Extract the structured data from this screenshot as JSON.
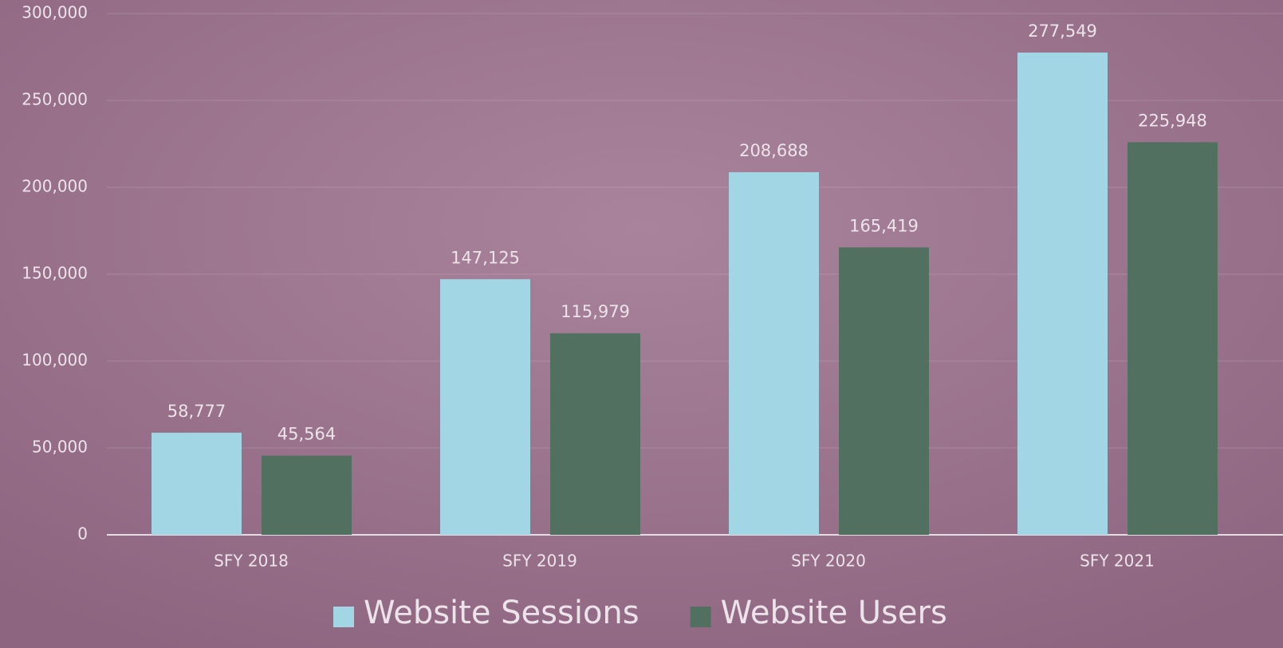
{
  "chart_data": {
    "type": "bar",
    "categories": [
      "SFY 2018",
      "SFY 2019",
      "SFY 2020",
      "SFY 2021"
    ],
    "series": [
      {
        "name": "Website Sessions",
        "color": "#a3d6e4",
        "values": [
          58777,
          147125,
          208688,
          277549
        ],
        "value_labels": [
          "58,777",
          "147,125",
          "208,688",
          "277,549"
        ]
      },
      {
        "name": "Website Users",
        "color": "#52705f",
        "values": [
          45564,
          115979,
          165419,
          225948
        ],
        "value_labels": [
          "45,564",
          "115,979",
          "165,419",
          "225,948"
        ]
      }
    ],
    "ylim": [
      0,
      300000
    ],
    "yticks": [
      0,
      {
        "value": 50000,
        "label": "50,000"
      },
      {
        "value": 100000,
        "label": "100,000"
      },
      {
        "value": 150000,
        "label": "150,000"
      },
      {
        "value": 200000,
        "label": "200,000"
      },
      {
        "value": 250000,
        "label": "250,000"
      },
      {
        "value": 300000,
        "label": "300,000"
      }
    ],
    "grid": true,
    "legend": "bottom"
  }
}
